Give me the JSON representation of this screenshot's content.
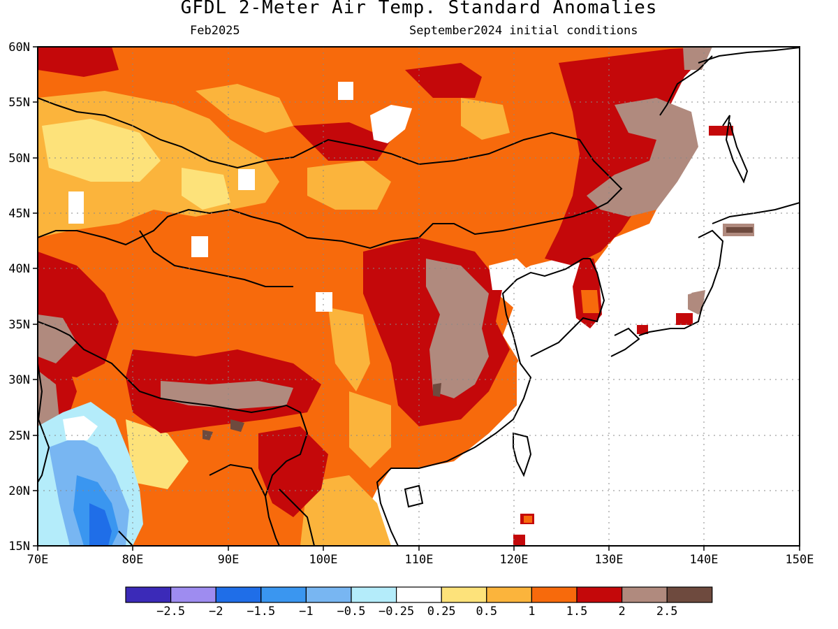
{
  "title": "GFDL 2-Meter Air Temp. Standard Anomalies",
  "subtitle_left": "Feb2025",
  "subtitle_right": "September2024 initial conditions",
  "map": {
    "lon_range": [
      70,
      150
    ],
    "lat_range": [
      15,
      60
    ],
    "lon_ticks": [
      "70E",
      "80E",
      "90E",
      "100E",
      "110E",
      "120E",
      "130E",
      "140E",
      "150E"
    ],
    "lat_ticks": [
      "15N",
      "20N",
      "25N",
      "30N",
      "35N",
      "40N",
      "45N",
      "50N",
      "55N",
      "60N"
    ],
    "gridlines": "dotted"
  },
  "colorbar": {
    "labels": [
      "-2.5",
      "-2",
      "-1.5",
      "-1",
      "-0.5",
      "-0.25",
      "0.25",
      "0.5",
      "1",
      "1.5",
      "2",
      "2.5"
    ],
    "colors": [
      "#3b2ab8",
      "#9e8cf0",
      "#1f6ee8",
      "#3a96f0",
      "#78b6f2",
      "#b4ecfa",
      "#ffffff",
      "#fde27a",
      "#fbb43c",
      "#f76a0c",
      "#c4080a",
      "#b08a7e",
      "#6e4a3e"
    ]
  }
}
